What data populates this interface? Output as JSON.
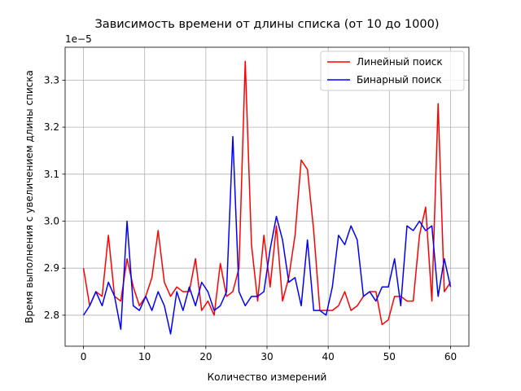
{
  "chart_data": {
    "type": "line",
    "title": "Зависимость времени от длины списка (от 10 до 1000)",
    "xlabel": "Количество измерений",
    "ylabel": "Время выполнения с увеличением длины списка",
    "offset_text": "1e−5",
    "xlim": [
      -3,
      63
    ],
    "ylim": [
      2.734,
      3.37
    ],
    "xticks": [
      0,
      10,
      20,
      30,
      40,
      50,
      60
    ],
    "yticks": [
      2.8,
      2.9,
      3.0,
      3.1,
      3.2,
      3.3
    ],
    "ytick_labels": [
      "2.8",
      "2.9",
      "3.0",
      "3.1",
      "3.2",
      "3.3"
    ],
    "grid": true,
    "legend_position": "upper-right",
    "series": [
      {
        "name": "Линейный поиск",
        "color": "#ff0000",
        "x": [
          0,
          1.015,
          2.03,
          3.05,
          4.07,
          5.08,
          6.1,
          7.12,
          8.14,
          9.15,
          10.17,
          11.19,
          12.2,
          13.22,
          14.24,
          15.25,
          16.27,
          17.29,
          18.31,
          19.32,
          20.34,
          21.36,
          22.37,
          23.39,
          24.41,
          25.42,
          26.44,
          27.46,
          28.47,
          29.49,
          30.51,
          31.53,
          32.54,
          33.56,
          34.58,
          35.59,
          36.61,
          37.63,
          38.64,
          39.66,
          40.68,
          41.69,
          42.71,
          43.73,
          44.75,
          45.76,
          46.78,
          47.8,
          48.81,
          49.83,
          50.85,
          51.86,
          52.88,
          53.9,
          54.92,
          55.93,
          56.95,
          57.97,
          58.98,
          60
        ],
        "values": [
          2.9,
          2.82,
          2.85,
          2.84,
          2.97,
          2.84,
          2.83,
          2.92,
          2.86,
          2.82,
          2.84,
          2.88,
          2.98,
          2.87,
          2.84,
          2.86,
          2.85,
          2.85,
          2.92,
          2.81,
          2.83,
          2.8,
          2.91,
          2.84,
          2.85,
          2.9,
          3.34,
          2.95,
          2.83,
          2.97,
          2.86,
          2.99,
          2.83,
          2.88,
          2.97,
          3.13,
          3.11,
          2.98,
          2.81,
          2.81,
          2.81,
          2.82,
          2.85,
          2.81,
          2.82,
          2.84,
          2.85,
          2.85,
          2.78,
          2.79,
          2.84,
          2.84,
          2.83,
          2.83,
          2.97,
          3.03,
          2.83,
          3.25,
          2.85,
          2.87
        ]
      },
      {
        "name": "Бинарный поиск",
        "color": "#0000ff",
        "x": [
          0,
          1.015,
          2.03,
          3.05,
          4.07,
          5.08,
          6.1,
          7.12,
          8.14,
          9.15,
          10.17,
          11.19,
          12.2,
          13.22,
          14.24,
          15.25,
          16.27,
          17.29,
          18.31,
          19.32,
          20.34,
          21.36,
          22.37,
          23.39,
          24.41,
          25.42,
          26.44,
          27.46,
          28.47,
          29.49,
          30.51,
          31.53,
          32.54,
          33.56,
          34.58,
          35.59,
          36.61,
          37.63,
          38.64,
          39.66,
          40.68,
          41.69,
          42.71,
          43.73,
          44.75,
          45.76,
          46.78,
          47.8,
          48.81,
          49.83,
          50.85,
          51.86,
          52.88,
          53.9,
          54.92,
          55.93,
          56.95,
          57.97,
          58.98,
          60
        ],
        "values": [
          2.8,
          2.82,
          2.85,
          2.82,
          2.87,
          2.84,
          2.77,
          3.0,
          2.82,
          2.81,
          2.84,
          2.81,
          2.85,
          2.82,
          2.76,
          2.85,
          2.81,
          2.86,
          2.82,
          2.87,
          2.85,
          2.81,
          2.82,
          2.85,
          3.18,
          2.85,
          2.82,
          2.84,
          2.84,
          2.85,
          2.94,
          3.01,
          2.96,
          2.87,
          2.88,
          2.82,
          2.96,
          2.81,
          2.81,
          2.8,
          2.86,
          2.97,
          2.95,
          2.99,
          2.96,
          2.84,
          2.85,
          2.83,
          2.86,
          2.86,
          2.92,
          2.82,
          2.99,
          2.98,
          3.0,
          2.98,
          2.99,
          2.84,
          2.92,
          2.86
        ]
      }
    ]
  }
}
